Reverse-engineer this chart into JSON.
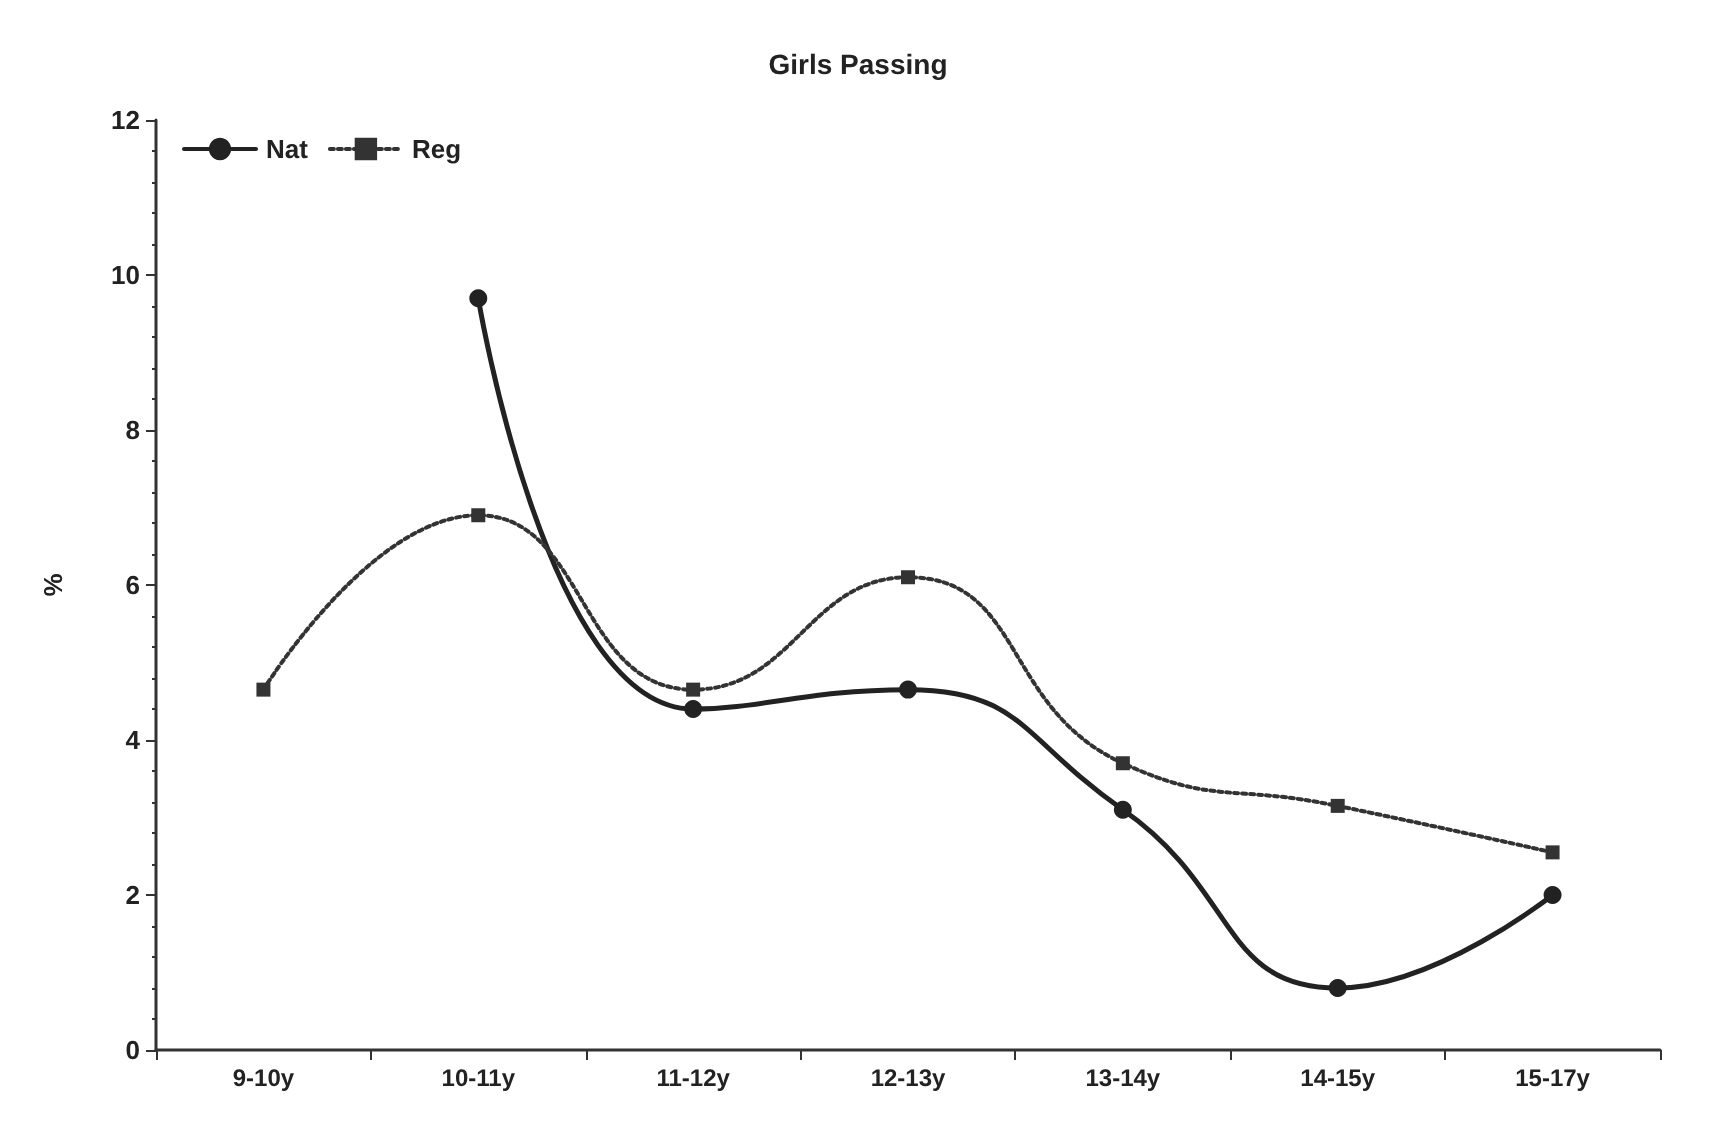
{
  "chart_data": {
    "type": "line",
    "title": "Girls Passing",
    "ylabel": "%",
    "categories": [
      "9-10y",
      "10-11y",
      "11-12y",
      "12-13y",
      "13-14y",
      "14-15y",
      "15-17y"
    ],
    "series": [
      {
        "name": "Nat",
        "color": "#222222",
        "marker": "circle",
        "line_style": "solid",
        "values": [
          null,
          9.7,
          4.4,
          4.65,
          3.1,
          0.8,
          2.0
        ]
      },
      {
        "name": "Reg",
        "color": "#333333",
        "marker": "square",
        "line_style": "dotted",
        "values": [
          4.65,
          6.9,
          4.65,
          6.1,
          3.7,
          3.15,
          2.55
        ]
      }
    ],
    "ylim": [
      0,
      12
    ],
    "yticks": [
      0,
      2,
      4,
      6,
      8,
      10,
      12
    ],
    "grid": false,
    "legend": "top left"
  }
}
